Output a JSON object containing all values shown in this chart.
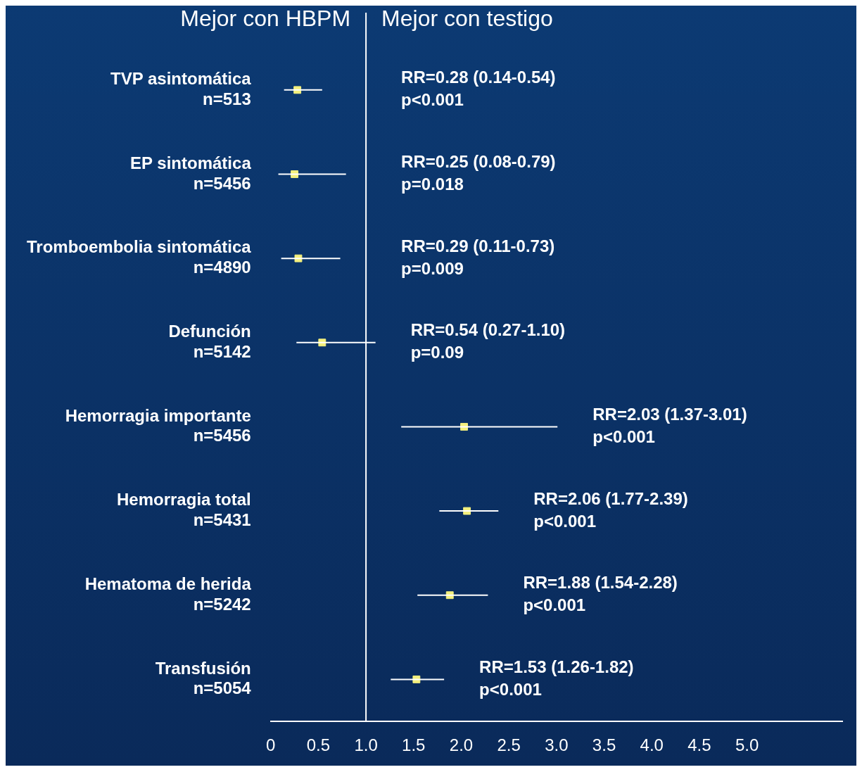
{
  "chart_data": {
    "type": "scatter",
    "orientation": "horizontal",
    "categories": [
      "TVP asintomática\nn=513",
      "EP sintomática\nn=5456",
      "Tromboembolia sintomática\nn=4890",
      "Defunción\nn=5142",
      "Hemorragia importante\nn=5456",
      "Hemorragia total\nn=5431",
      "Hematoma de herida\nn=5242",
      "Transfusión\nn=5054"
    ],
    "values": [
      0.28,
      0.25,
      0.29,
      0.54,
      2.03,
      2.06,
      1.88,
      1.53
    ],
    "errors": [
      [
        0.14,
        0.54
      ],
      [
        0.08,
        0.79
      ],
      [
        0.11,
        0.73
      ],
      [
        0.27,
        1.1
      ],
      [
        1.37,
        3.01
      ],
      [
        1.77,
        2.39
      ],
      [
        1.54,
        2.28
      ],
      [
        1.26,
        1.82
      ]
    ],
    "color": "#f4f07e",
    "marker": "square",
    "xlim": [
      0,
      6
    ],
    "xticks": [
      0,
      0.5,
      {
        "value": 1,
        "label": "1.0"
      },
      1.5,
      {
        "value": 2,
        "label": "2.0"
      },
      2.5,
      {
        "value": 3,
        "label": "3.0"
      },
      3.5,
      {
        "value": 4,
        "label": "4.0"
      },
      4.5,
      {
        "value": 5,
        "label": "5.0"
      }
    ],
    "ref_lines": [
      {
        "axis": "x",
        "value": 1,
        "color": "#ffffff"
      }
    ],
    "grid": false,
    "legend": false,
    "annotations": [
      "Mejor con HBPM",
      "Mejor con testigo",
      "RR=0.28 (0.14-0.54)\np<0.001",
      "RR=0.25 (0.08-0.79)\np=0.018",
      "RR=0.29 (0.11-0.73)\np=0.009",
      "RR=0.54 (0.27-1.10)\np=0.09",
      "RR=2.03 (1.37-3.01)\np<0.001",
      "RR=2.06 (1.77-2.39)\np<0.001",
      "RR=1.88 (1.54-2.28)\np<0.001",
      "RR=1.53 (1.26-1.82)\np<0.001"
    ]
  }
}
